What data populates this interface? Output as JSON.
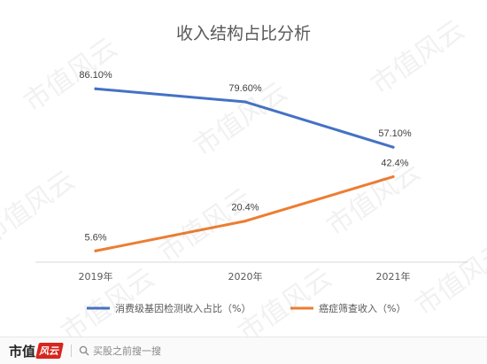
{
  "chart_data": {
    "type": "line",
    "title": "收入结构占比分析",
    "categories": [
      "2019年",
      "2020年",
      "2021年"
    ],
    "series": [
      {
        "name": "消费级基因检测收入占比（%）",
        "values": [
          86.1,
          79.6,
          57.1
        ],
        "labels": [
          "86.10%",
          "79.60%",
          "57.10%"
        ],
        "color": "#4472c4"
      },
      {
        "name": "癌症筛查收入（%）",
        "values": [
          5.6,
          20.4,
          42.4
        ],
        "labels": [
          "5.6%",
          "20.4%",
          "42.4%"
        ],
        "color": "#ed7d31"
      }
    ],
    "ylim": [
      0,
      95
    ],
    "grid": false,
    "legend": "bottom"
  },
  "watermark_text": "市值风云",
  "footer": {
    "brand_text": "市值",
    "brand_mark": "风云",
    "search_text": "买股之前搜一搜",
    "search_icon": "search-icon"
  }
}
